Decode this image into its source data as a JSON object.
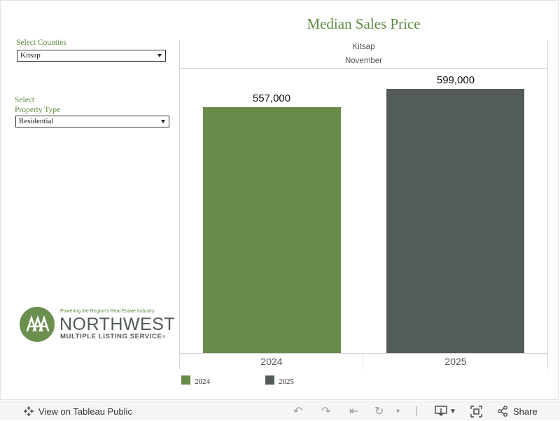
{
  "dashboard": {
    "title": "Median Sales Price"
  },
  "filters": {
    "counties": {
      "label": "Select Counties",
      "value": "Kitsap"
    },
    "property_type": {
      "label_line1": "Select",
      "label_line2": "Property Type",
      "value": "Residential"
    }
  },
  "chart_header": {
    "county": "Kitsap",
    "month": "November"
  },
  "chart_data": {
    "type": "bar",
    "categories": [
      "2024",
      "2025"
    ],
    "values": [
      557000,
      599000
    ],
    "value_labels": [
      "557,000",
      "599,000"
    ],
    "colors": [
      "#6a8a4a",
      "#535c5b"
    ],
    "title": "Median Sales Price",
    "xlabel": "",
    "ylabel": "",
    "ylim": [
      0,
      645000
    ],
    "grid": false,
    "legend": {
      "position": "bottom-left",
      "entries": [
        "2024",
        "2025"
      ]
    }
  },
  "logo": {
    "tagline": "Powering the Region's Real Estate Industry",
    "name": "NORTHWEST",
    "subname": "MULTIPLE LISTING SERVICE",
    "reg": "®"
  },
  "toolbar": {
    "view_label": "View on Tableau Public",
    "share_label": "Share",
    "icons": [
      "tableau-icon",
      "undo-icon",
      "redo-icon",
      "revert-icon",
      "refresh-icon",
      "download-icon",
      "fullscreen-icon",
      "share-icon"
    ]
  }
}
